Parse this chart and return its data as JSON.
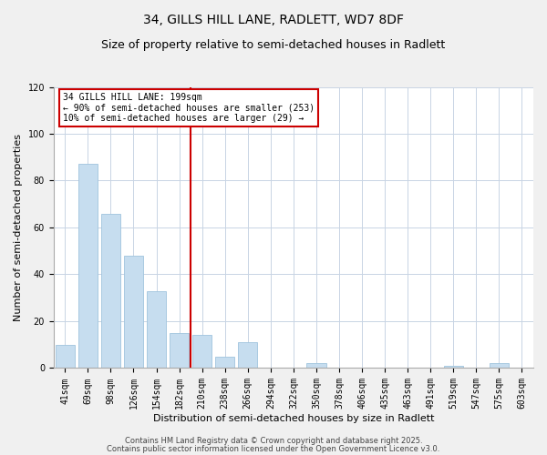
{
  "title": "34, GILLS HILL LANE, RADLETT, WD7 8DF",
  "subtitle": "Size of property relative to semi-detached houses in Radlett",
  "xlabel": "Distribution of semi-detached houses by size in Radlett",
  "ylabel": "Number of semi-detached properties",
  "categories": [
    "41sqm",
    "69sqm",
    "98sqm",
    "126sqm",
    "154sqm",
    "182sqm",
    "210sqm",
    "238sqm",
    "266sqm",
    "294sqm",
    "322sqm",
    "350sqm",
    "378sqm",
    "406sqm",
    "435sqm",
    "463sqm",
    "491sqm",
    "519sqm",
    "547sqm",
    "575sqm",
    "603sqm"
  ],
  "values": [
    10,
    87,
    66,
    48,
    33,
    15,
    14,
    5,
    11,
    0,
    0,
    2,
    0,
    0,
    0,
    0,
    0,
    1,
    0,
    2,
    0
  ],
  "bar_color": "#c6ddef",
  "bar_edge_color": "#a0c4de",
  "vline_x": 5.5,
  "vline_color": "#cc0000",
  "annotation_text": "34 GILLS HILL LANE: 199sqm\n← 90% of semi-detached houses are smaller (253)\n10% of semi-detached houses are larger (29) →",
  "annotation_box_facecolor": "#ffffff",
  "annotation_box_edgecolor": "#cc0000",
  "ylim": [
    0,
    120
  ],
  "yticks": [
    0,
    20,
    40,
    60,
    80,
    100,
    120
  ],
  "footer1": "Contains HM Land Registry data © Crown copyright and database right 2025.",
  "footer2": "Contains public sector information licensed under the Open Government Licence v3.0.",
  "bg_color": "#f0f0f0",
  "plot_bg_color": "#ffffff",
  "grid_color": "#c8d4e4",
  "title_fontsize": 10,
  "subtitle_fontsize": 9,
  "xlabel_fontsize": 8,
  "ylabel_fontsize": 8,
  "tick_fontsize": 7,
  "annotation_fontsize": 7,
  "footer_fontsize": 6
}
